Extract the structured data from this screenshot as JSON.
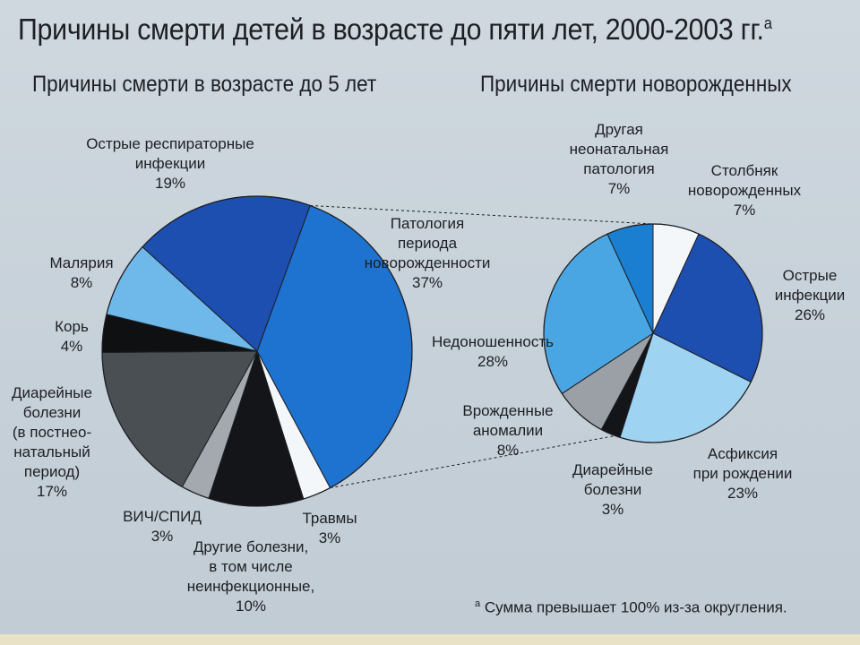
{
  "title": "Причины смерти детей в возрасте до пяти лет, 2000-2003 гг.",
  "title_mark": "a",
  "footnote_mark": "a",
  "footnote": "Сумма превышает 100% из-за округления.",
  "chart_data": [
    {
      "type": "pie",
      "title": "Причины смерти в возрасте до 5 лет",
      "slices": [
        {
          "label": "Патология периода новорожденности",
          "value": 37,
          "text": "Патология\nпериода\nновoрожденности\n37%",
          "color": "#1e73d0"
        },
        {
          "label": "Травмы",
          "value": 3,
          "text": "Травмы\n3%",
          "color": "#f4f7f9"
        },
        {
          "label": "Другие болезни, в том числе неинфекционные",
          "value": 10,
          "text": "Другие болезни,\nв том числе\nнеинфекционные,\n10%",
          "color": "#131518"
        },
        {
          "label": "ВИЧ/СПИД",
          "value": 3,
          "text": "ВИЧ/СПИД\n3%",
          "color": "#a3a9ae"
        },
        {
          "label": "Диарейные болезни (в постнеонатальный период)",
          "value": 17,
          "text": "Диарейные\nболезни\n(в постнео-\nнатальный\nпериод)\n17%",
          "color": "#4a4f54"
        },
        {
          "label": "Корь",
          "value": 4,
          "text": "Корь\n4%",
          "color": "#0e1012"
        },
        {
          "label": "Малярия",
          "value": 8,
          "text": "Малярия\n8%",
          "color": "#6fb8ea"
        },
        {
          "label": "Острые респираторные инфекции",
          "value": 19,
          "text": "Острые респираторные\nинфекции\n19%",
          "color": "#1c4fb0"
        }
      ]
    },
    {
      "type": "pie",
      "title": "Причины смерти новорожденных",
      "slices": [
        {
          "label": "Столбняк новорожденных",
          "value": 7,
          "text": "Столбняк\nновoрожденных\n7%",
          "color": "#f4f7f9"
        },
        {
          "label": "Острые инфекции",
          "value": 26,
          "text": "Острые\nинфекции\n26%",
          "color": "#1c4fb0"
        },
        {
          "label": "Асфиксия при рождении",
          "value": 23,
          "text": "Асфиксия\nпри рождении\n23%",
          "color": "#9fd3f2"
        },
        {
          "label": "Диарейные болезни",
          "value": 3,
          "text": "Диарейные\nболезни\n3%",
          "color": "#131518"
        },
        {
          "label": "Врожденные аномалии",
          "value": 8,
          "text": "Врожденные\nаномалии\n8%",
          "color": "#9aa0a6"
        },
        {
          "label": "Недоношенность",
          "value": 28,
          "text": "Недоношенность\n28%",
          "color": "#4aa6e2"
        },
        {
          "label": "Другая неонатальная патология",
          "value": 7,
          "text": "Другая\nнеонатальная\nпатология\n7%",
          "color": "#1a7fd0"
        }
      ]
    }
  ]
}
